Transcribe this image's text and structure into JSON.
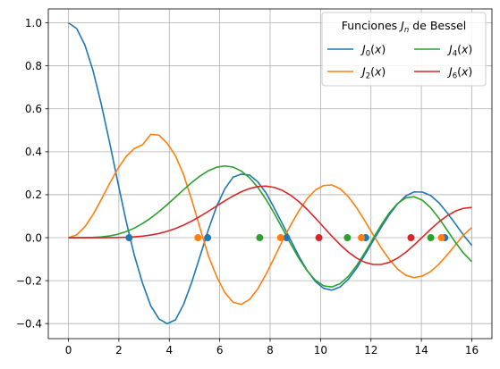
{
  "chart_data": {
    "type": "line",
    "title": "",
    "xlabel": "",
    "ylabel": "",
    "xlim": [
      -0.8,
      16.8
    ],
    "ylim": [
      -0.47,
      1.065
    ],
    "grid": true,
    "xticks": [
      0,
      2,
      4,
      6,
      8,
      10,
      12,
      14,
      16
    ],
    "xtick_labels": [
      "0",
      "2",
      "4",
      "6",
      "8",
      "10",
      "12",
      "14",
      "16"
    ],
    "yticks": [
      -0.4,
      -0.2,
      0.0,
      0.2,
      0.4,
      0.6,
      0.8,
      1.0
    ],
    "ytick_labels": [
      "−0.4",
      "−0.2",
      "0.0",
      "0.2",
      "0.4",
      "0.6",
      "0.8",
      "1.0"
    ],
    "legend": {
      "placement": "top-right",
      "title_prefix": "Funciones ",
      "title_var": "J",
      "title_sub": "n",
      "title_suffix": " de Bessel",
      "columns": 2
    },
    "x": [
      0.0,
      0.327,
      0.653,
      0.98,
      1.306,
      1.633,
      1.959,
      2.286,
      2.612,
      2.939,
      3.265,
      3.592,
      3.918,
      4.245,
      4.571,
      4.898,
      5.224,
      5.551,
      5.878,
      6.204,
      6.531,
      6.857,
      7.184,
      7.51,
      7.837,
      8.163,
      8.49,
      8.816,
      9.143,
      9.469,
      9.796,
      10.122,
      10.449,
      10.776,
      11.102,
      11.429,
      11.755,
      12.082,
      12.408,
      12.735,
      13.061,
      13.388,
      13.714,
      14.041,
      14.367,
      14.694,
      15.02,
      15.347,
      15.673,
      16.0
    ],
    "series": [
      {
        "name": "J0(x)",
        "var": "J",
        "sub": "0",
        "color": "#1f77b4",
        "values": [
          1.0,
          0.9735,
          0.8965,
          0.7752,
          0.6194,
          0.4424,
          0.2572,
          0.0779,
          -0.0816,
          -0.2118,
          -0.3175,
          -0.3783,
          -0.4004,
          -0.3826,
          -0.3096,
          -0.2049,
          -0.0842,
          0.0373,
          0.1457,
          0.2276,
          0.2817,
          0.2958,
          0.2916,
          0.2601,
          0.2085,
          0.1377,
          0.0636,
          -0.0118,
          -0.0867,
          -0.1528,
          -0.2037,
          -0.2358,
          -0.2443,
          -0.2293,
          -0.1938,
          -0.1423,
          -0.0806,
          -0.0156,
          0.0485,
          0.1082,
          0.1581,
          0.195,
          0.2132,
          0.2122,
          0.1965,
          0.1627,
          0.1164,
          0.0647,
          0.0117,
          -0.0358
        ]
      },
      {
        "name": "J2(x)",
        "var": "J",
        "sub": "2",
        "color": "#ff7f0e",
        "values": [
          0.0,
          0.0132,
          0.051,
          0.1086,
          0.1787,
          0.2527,
          0.3214,
          0.3778,
          0.4151,
          0.4328,
          0.4813,
          0.4774,
          0.4393,
          0.3812,
          0.2919,
          0.1726,
          0.0428,
          -0.0846,
          -0.1809,
          -0.2561,
          -0.3011,
          -0.3103,
          -0.2878,
          -0.2385,
          -0.1706,
          -0.0934,
          -0.0143,
          0.0591,
          0.1252,
          0.1815,
          0.2221,
          0.2425,
          0.2455,
          0.2278,
          0.191,
          0.1395,
          0.0789,
          0.0144,
          -0.0476,
          -0.1026,
          -0.1467,
          -0.1754,
          -0.186,
          -0.1787,
          -0.1578,
          -0.1235,
          -0.0808,
          -0.0339,
          0.0125,
          0.0472
        ]
      },
      {
        "name": "J4(x)",
        "var": "J",
        "sub": "4",
        "color": "#2ca02c",
        "values": [
          0.0,
          0.0,
          0.0002,
          0.0012,
          0.0035,
          0.0081,
          0.016,
          0.028,
          0.0445,
          0.0657,
          0.0914,
          0.1211,
          0.1539,
          0.1887,
          0.2238,
          0.2575,
          0.2874,
          0.3116,
          0.3278,
          0.3339,
          0.3284,
          0.3102,
          0.2788,
          0.2344,
          0.1785,
          0.1133,
          0.0425,
          -0.0292,
          -0.0964,
          -0.1544,
          -0.1982,
          -0.2241,
          -0.2296,
          -0.2143,
          -0.1803,
          -0.1306,
          -0.0703,
          -0.0049,
          0.0597,
          0.1166,
          0.1603,
          0.1859,
          0.1905,
          0.1742,
          0.1394,
          0.0912,
          0.0354,
          -0.0211,
          -0.0722,
          -0.1113
        ]
      },
      {
        "name": "J6(x)",
        "var": "J",
        "sub": "6",
        "color": "#d62728",
        "values": [
          0.0,
          0.0,
          0.0,
          0.0,
          0.0,
          0.0002,
          0.0007,
          0.0019,
          0.0038,
          0.0071,
          0.0122,
          0.0196,
          0.0297,
          0.0428,
          0.0589,
          0.0779,
          0.0994,
          0.1228,
          0.1473,
          0.1715,
          0.1941,
          0.2137,
          0.2287,
          0.2379,
          0.2399,
          0.2341,
          0.2199,
          0.1975,
          0.1676,
          0.1316,
          0.0913,
          0.0489,
          0.0069,
          -0.0324,
          -0.0671,
          -0.0949,
          -0.1145,
          -0.1247,
          -0.1247,
          -0.1146,
          -0.0951,
          -0.0676,
          -0.0343,
          0.0024,
          0.0391,
          0.0731,
          0.1019,
          0.1237,
          0.1368,
          0.1406
        ]
      }
    ],
    "zero_markers": [
      {
        "series": "J0(x)",
        "x": [
          2.405,
          5.52,
          8.654,
          11.792,
          14.931
        ]
      },
      {
        "series": "J2(x)",
        "x": [
          5.136,
          8.417,
          11.62,
          14.796
        ]
      },
      {
        "series": "J4(x)",
        "x": [
          7.588,
          11.065,
          14.373
        ]
      },
      {
        "series": "J6(x)",
        "x": [
          9.936,
          13.589
        ]
      }
    ]
  }
}
